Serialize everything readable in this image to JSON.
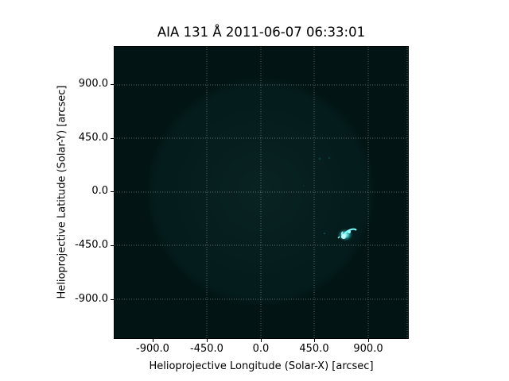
{
  "figure": {
    "title": "AIA 131 Å 2011-06-07 06:33:01",
    "x_label": "Helioprojective Longitude (Solar-X) [arcsec]",
    "y_label": "Helioprojective Latitude (Solar-Y) [arcsec]",
    "x_ticks": [
      "-900.0",
      "-450.0",
      "0.0",
      "450.0",
      "900.0"
    ],
    "y_ticks": [
      "900.0",
      "450.0",
      "0.0",
      "-450.0",
      "-900.0"
    ],
    "grid": "dotted white",
    "colors": {
      "background": "#021414",
      "flare": "#5fffff",
      "grid": "#b0b0b0"
    },
    "image_content": "dark solar disk with bright eruptive feature near lower right"
  }
}
